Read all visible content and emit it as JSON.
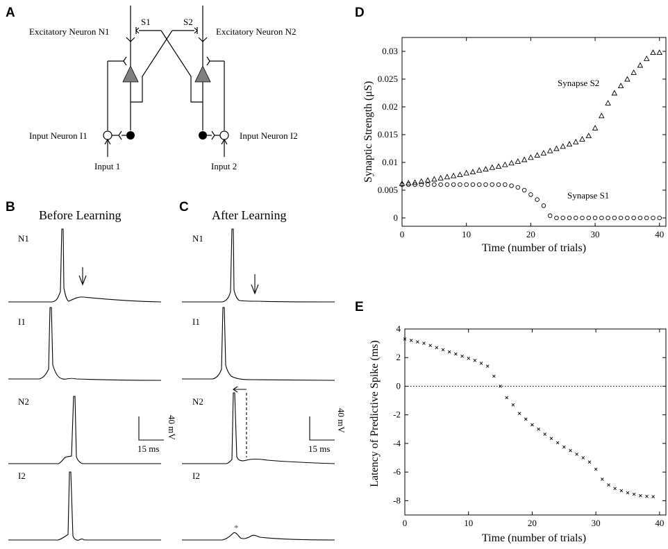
{
  "panels": {
    "A": {
      "label": "A",
      "excitatory_n1": "Excitatory Neuron N1",
      "excitatory_n2": "Excitatory Neuron N2",
      "synapse_s1": "S1",
      "synapse_s2": "S2",
      "input_neuron_i1": "Input Neuron I1",
      "input_neuron_i2": "Input Neuron I2",
      "input_1": "Input 1",
      "input_2": "Input 2"
    },
    "B": {
      "label": "B",
      "title": "Before  Learning",
      "trace_labels": [
        "N1",
        "I1",
        "N2",
        "I2"
      ],
      "scale_voltage": "40 mV",
      "scale_time": "15 ms"
    },
    "C": {
      "label": "C",
      "title": "After Learning",
      "trace_labels": [
        "N1",
        "I1",
        "N2",
        "I2"
      ],
      "scale_voltage": "40 mV",
      "scale_time": "15 ms",
      "asterisk": "*"
    },
    "D": {
      "label": "D",
      "ylabel": "Synaptic Strength  (μS)",
      "xlabel": "Time (number of trials)",
      "annotation_s2": "Synapse S2",
      "annotation_s1": "Synapse S1"
    },
    "E": {
      "label": "E",
      "ylabel": "Latency of Predictive Spike (ms)",
      "xlabel": "Time (number of trials)"
    }
  },
  "chart_data": [
    {
      "panel": "D",
      "type": "scatter",
      "xlabel": "Time (number of trials)",
      "ylabel": "Synaptic Strength  (μS)",
      "xlim": [
        0,
        41
      ],
      "ylim": [
        -0.0015,
        0.0325
      ],
      "xticks": [
        0,
        10,
        20,
        30,
        40
      ],
      "yticks": [
        0,
        0.005,
        0.01,
        0.015,
        0.02,
        0.025,
        0.03
      ],
      "ytick_labels": [
        "0",
        "0.005",
        "0.01",
        "0.015",
        "0.02",
        "0.025",
        "0.03"
      ],
      "series": [
        {
          "name": "Synapse S2",
          "marker": "triangle",
          "x": [
            0,
            1,
            2,
            3,
            4,
            5,
            6,
            7,
            8,
            9,
            10,
            11,
            12,
            13,
            14,
            15,
            16,
            17,
            18,
            19,
            20,
            21,
            22,
            23,
            24,
            25,
            26,
            27,
            28,
            29,
            30,
            31,
            32,
            33,
            34,
            35,
            36,
            37,
            38,
            39,
            40
          ],
          "y": [
            0.0062,
            0.0063,
            0.0064,
            0.0066,
            0.0068,
            0.007,
            0.0072,
            0.0074,
            0.0076,
            0.0078,
            0.0081,
            0.0083,
            0.0086,
            0.0088,
            0.0091,
            0.0093,
            0.0096,
            0.0099,
            0.0102,
            0.0105,
            0.0109,
            0.0113,
            0.0117,
            0.0121,
            0.0125,
            0.0129,
            0.0133,
            0.0137,
            0.0142,
            0.0148,
            0.0162,
            0.0184,
            0.0207,
            0.0225,
            0.0238,
            0.025,
            0.0262,
            0.0275,
            0.0287,
            0.0298,
            0.0298
          ]
        },
        {
          "name": "Synapse S1",
          "marker": "circle",
          "x": [
            0,
            1,
            2,
            3,
            4,
            5,
            6,
            7,
            8,
            9,
            10,
            11,
            12,
            13,
            14,
            15,
            16,
            17,
            18,
            19,
            20,
            21,
            22,
            23,
            24,
            25,
            26,
            27,
            28,
            29,
            30,
            31,
            32,
            33,
            34,
            35,
            36,
            37,
            38,
            39,
            40
          ],
          "y": [
            0.006,
            0.006,
            0.006,
            0.006,
            0.006,
            0.006,
            0.006,
            0.006,
            0.006,
            0.006,
            0.006,
            0.006,
            0.006,
            0.006,
            0.006,
            0.006,
            0.006,
            0.0058,
            0.0055,
            0.005,
            0.0042,
            0.0033,
            0.0022,
            0.0004,
            0,
            0,
            0,
            0,
            0,
            0,
            0,
            0,
            0,
            0,
            0,
            0,
            0,
            0,
            0,
            0,
            0
          ]
        }
      ]
    },
    {
      "panel": "E",
      "type": "scatter",
      "xlabel": "Time (number of trials)",
      "ylabel": "Latency of Predictive Spike (ms)",
      "xlim": [
        0,
        41
      ],
      "ylim": [
        -9,
        4
      ],
      "xticks": [
        0,
        10,
        20,
        30,
        40
      ],
      "yticks": [
        -8,
        -6,
        -4,
        -2,
        0,
        2,
        4
      ],
      "reference_line": 0,
      "series": [
        {
          "marker": "x",
          "x": [
            0,
            1,
            2,
            3,
            4,
            5,
            6,
            7,
            8,
            9,
            10,
            11,
            12,
            13,
            14,
            15,
            16,
            17,
            18,
            19,
            20,
            21,
            22,
            23,
            24,
            25,
            26,
            27,
            28,
            29,
            30,
            31,
            32,
            33,
            34,
            35,
            36,
            37,
            38,
            39
          ],
          "y": [
            3.3,
            3.2,
            3.1,
            3.0,
            2.85,
            2.7,
            2.55,
            2.4,
            2.25,
            2.1,
            1.95,
            1.8,
            1.6,
            1.4,
            0.7,
            0.0,
            -0.8,
            -1.3,
            -1.9,
            -2.3,
            -2.7,
            -3.0,
            -3.35,
            -3.65,
            -3.95,
            -4.25,
            -4.5,
            -4.75,
            -5.0,
            -5.3,
            -5.8,
            -6.5,
            -6.9,
            -7.15,
            -7.3,
            -7.45,
            -7.55,
            -7.65,
            -7.7,
            -7.72
          ]
        }
      ]
    }
  ]
}
